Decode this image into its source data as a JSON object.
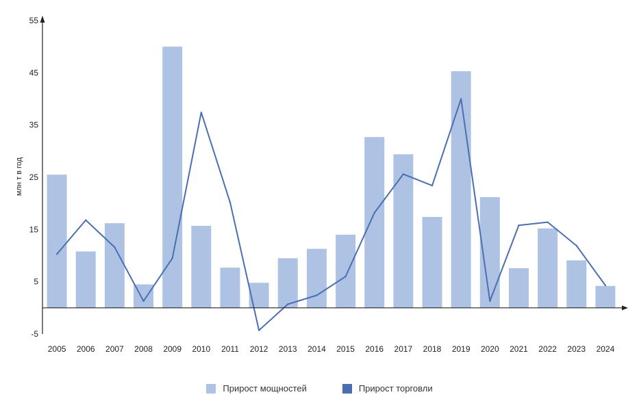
{
  "chart_data": {
    "type": "bar",
    "title": "",
    "xlabel": "",
    "ylabel": "млн т в год",
    "ylim": [
      -5,
      55
    ],
    "yticks": [
      -5,
      5,
      15,
      25,
      35,
      45,
      55
    ],
    "categories": [
      "2005",
      "2006",
      "2007",
      "2008",
      "2009",
      "2010",
      "2011",
      "2012",
      "2013",
      "2014",
      "2015",
      "2016",
      "2017",
      "2018",
      "2019",
      "2020",
      "2021",
      "2022",
      "2023",
      "2024"
    ],
    "series": [
      {
        "name": "Прирост мощностей",
        "kind": "bar",
        "color": "#aec3e4",
        "values": [
          25.5,
          10.8,
          16.2,
          4.5,
          50.0,
          15.7,
          7.7,
          4.8,
          9.5,
          11.3,
          14.0,
          32.7,
          29.4,
          17.4,
          45.3,
          21.2,
          7.6,
          15.2,
          9.1,
          4.2
        ]
      },
      {
        "name": "Прирост торговли",
        "kind": "line",
        "color": "#4a6fb0",
        "values": [
          10.3,
          16.8,
          11.6,
          1.3,
          9.5,
          37.4,
          20.2,
          -4.3,
          0.7,
          2.4,
          6.0,
          18.2,
          25.6,
          23.4,
          40.0,
          1.3,
          15.8,
          16.4,
          11.9,
          4.3
        ]
      }
    ],
    "legend_position": "bottom-center",
    "grid": false
  }
}
